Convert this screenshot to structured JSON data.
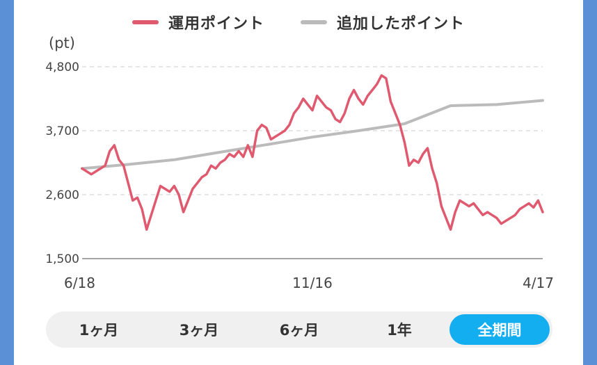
{
  "legend": [
    {
      "label": "運用ポイント",
      "color": "#e05a6f"
    },
    {
      "label": "追加したポイント",
      "color": "#bbbbbb"
    }
  ],
  "range_tabs": [
    {
      "label": "1ヶ月",
      "active": false
    },
    {
      "label": "3ヶ月",
      "active": false
    },
    {
      "label": "6ヶ月",
      "active": false
    },
    {
      "label": "1年",
      "active": false
    },
    {
      "label": "全期間",
      "active": true
    }
  ],
  "colors": {
    "accent": "#13aef0",
    "line_primary": "#e05a6f",
    "line_secondary": "#bbbbbb"
  },
  "chart_data": {
    "type": "line",
    "ylabel": "(pt)",
    "ylim": [
      1500,
      4800
    ],
    "yticks": [
      1500,
      2600,
      3700,
      4800
    ],
    "ytick_labels": [
      "1,500",
      "2,600",
      "3,700",
      "4,800"
    ],
    "xlim": [
      0,
      100
    ],
    "xticks": [
      0,
      50,
      100
    ],
    "xtick_labels": [
      "6/18",
      "11/16",
      "4/17"
    ],
    "grid": true,
    "legend_position": "top",
    "series": [
      {
        "name": "運用ポイント",
        "x": [
          0,
          2,
          3,
          4,
          5,
          6,
          7,
          8,
          9,
          10,
          11,
          12,
          13,
          14,
          15,
          16,
          17,
          18,
          19,
          20,
          21,
          22,
          23,
          24,
          25,
          26,
          27,
          28,
          29,
          30,
          31,
          32,
          33,
          34,
          35,
          36,
          37,
          38,
          39,
          40,
          41,
          42,
          43,
          44,
          45,
          46,
          47,
          48,
          49,
          50,
          51,
          52,
          53,
          54,
          55,
          56,
          57,
          58,
          59,
          60,
          61,
          62,
          63,
          64,
          65,
          66,
          67,
          68,
          69,
          70,
          71,
          72,
          73,
          74,
          75,
          76,
          77,
          78,
          79,
          80,
          81,
          82,
          83,
          84,
          85,
          86,
          87,
          88,
          89,
          90,
          91,
          92,
          93,
          94,
          95,
          96,
          97,
          98,
          99,
          100
        ],
        "values": [
          3050,
          2950,
          3000,
          3050,
          3100,
          3350,
          3450,
          3200,
          3100,
          2800,
          2500,
          2550,
          2350,
          2000,
          2250,
          2500,
          2750,
          2700,
          2650,
          2750,
          2600,
          2300,
          2500,
          2700,
          2800,
          2900,
          2950,
          3100,
          3050,
          3150,
          3200,
          3300,
          3250,
          3350,
          3250,
          3450,
          3250,
          3700,
          3800,
          3750,
          3550,
          3600,
          3650,
          3700,
          3800,
          4000,
          4100,
          4250,
          4150,
          4050,
          4300,
          4200,
          4100,
          4050,
          3900,
          3850,
          4000,
          4250,
          4400,
          4250,
          4150,
          4300,
          4400,
          4500,
          4650,
          4600,
          4200,
          4000,
          3800,
          3500,
          3100,
          3200,
          3150,
          3300,
          3400,
          3050,
          2800,
          2400,
          2200,
          2000,
          2300,
          2500,
          2450,
          2400,
          2450,
          2350,
          2250,
          2300,
          2250,
          2200,
          2100,
          2150,
          2200,
          2250,
          2350,
          2400,
          2450,
          2380,
          2500,
          2300
        ]
      },
      {
        "name": "追加したポイント",
        "x": [
          0,
          10,
          20,
          30,
          40,
          50,
          60,
          70,
          80,
          90,
          100
        ],
        "values": [
          3050,
          3120,
          3200,
          3330,
          3460,
          3590,
          3700,
          3820,
          4130,
          4150,
          4220
        ]
      }
    ]
  }
}
